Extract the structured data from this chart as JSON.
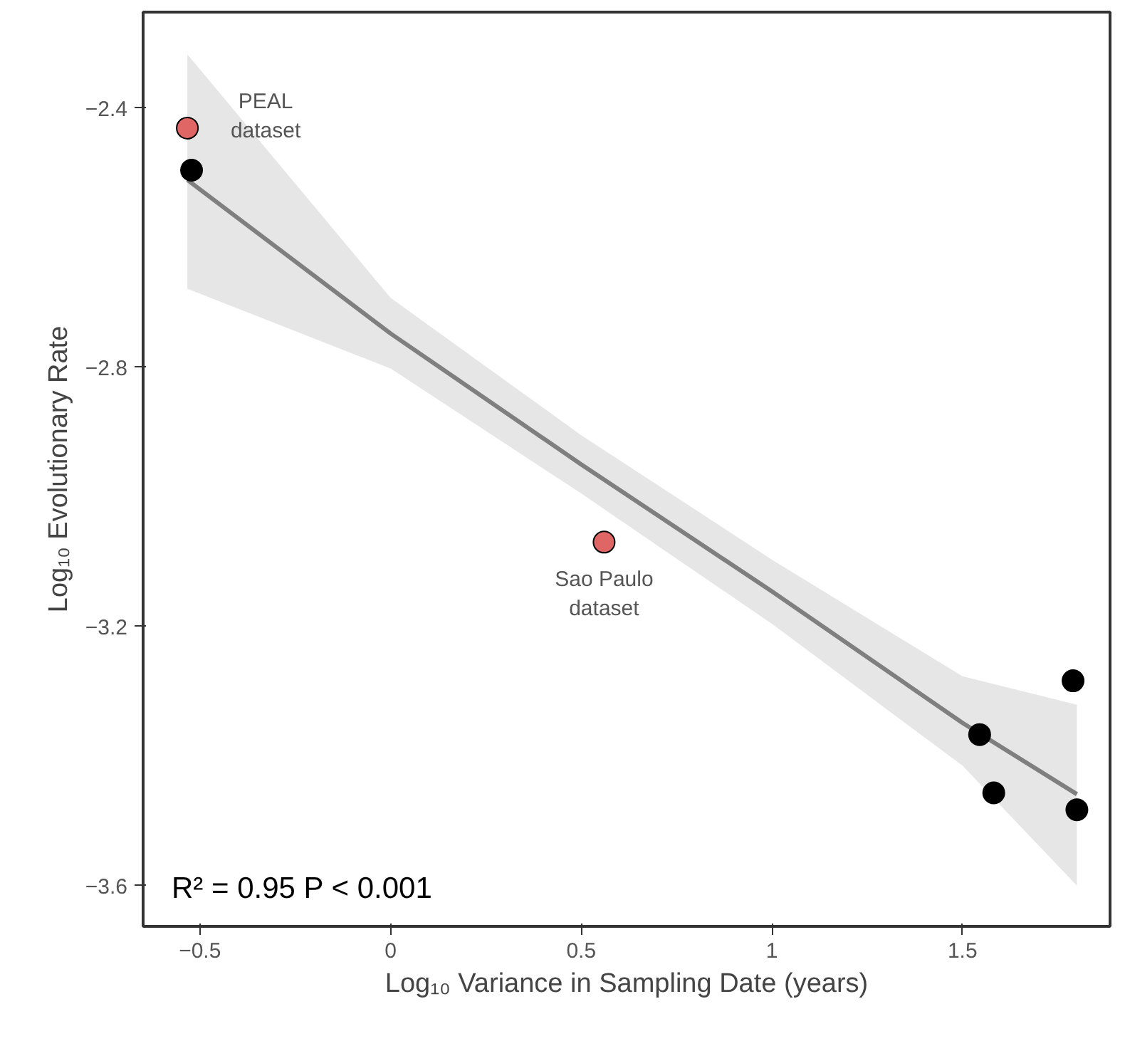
{
  "chart_data": {
    "type": "scatter",
    "xlabel": "Log₁₀ Variance in Sampling Date (years)",
    "ylabel": "Log₁₀ Evolutionary Rate",
    "xlim": [
      -0.649,
      1.887
    ],
    "ylim": [
      -3.663,
      -2.252
    ],
    "xticks": [
      -0.5,
      0.0,
      0.5,
      1.0,
      1.5
    ],
    "yticks": [
      -3.6,
      -3.2,
      -2.8,
      -2.4
    ],
    "grid": false,
    "marker": "circle",
    "series": [
      {
        "type": "line",
        "marker": "none",
        "color": "#7f7f7f",
        "x": [
          -0.533,
          0.0,
          0.5,
          1.0,
          1.5,
          1.8
        ],
        "values": [
          -2.511,
          -2.748,
          -2.95,
          -3.146,
          -3.349,
          -3.459
        ],
        "lower": [
          -2.679,
          -2.802,
          -2.995,
          -3.196,
          -3.415,
          -3.6
        ],
        "upper": [
          -2.317,
          -2.693,
          -2.905,
          -3.097,
          -3.277,
          -3.321
        ]
      },
      {
        "color": "#000000",
        "x": [
          -0.522,
          1.79,
          1.545,
          1.582,
          1.8
        ],
        "values": [
          -2.496,
          -3.284,
          -3.367,
          -3.457,
          -3.483
        ]
      },
      {
        "color": "#e06666",
        "x": [
          -0.533,
          0.56
        ],
        "values": [
          -2.431,
          -3.07
        ]
      }
    ],
    "annotations": [
      {
        "text": "PEAL\ndataset",
        "x": -0.533,
        "y": -2.431
      },
      {
        "text": "Sao Paulo\ndataset",
        "x": 0.56,
        "y": -3.07
      },
      "R² = 0.95   P < 0.001"
    ]
  }
}
